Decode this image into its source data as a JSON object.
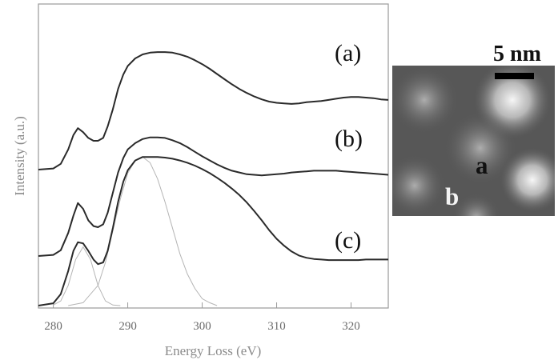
{
  "chart_data": {
    "type": "line",
    "xlabel": "Energy Loss (eV)",
    "ylabel": "Intensity (a.u.)",
    "xlim": [
      278,
      325
    ],
    "x_ticks": [
      280,
      290,
      300,
      310,
      320
    ],
    "y_ticks_shown": false,
    "grid": false,
    "series": [
      {
        "name": "(a)",
        "x": [
          278,
          280,
          281,
          282,
          282.7,
          283.3,
          284,
          284.7,
          285.4,
          286,
          286.7,
          287.3,
          288,
          288.7,
          289.4,
          290,
          291,
          292,
          293,
          294,
          295,
          296,
          297,
          298,
          299,
          300,
          301,
          302,
          303,
          304,
          305,
          306,
          307,
          308,
          309,
          310,
          311,
          312,
          313,
          314,
          315,
          316,
          317,
          318,
          319,
          320,
          321,
          322,
          323,
          324,
          325
        ],
        "y": [
          0.0,
          0.02,
          0.1,
          0.35,
          0.6,
          0.72,
          0.65,
          0.55,
          0.5,
          0.5,
          0.55,
          0.75,
          1.05,
          1.4,
          1.65,
          1.8,
          1.93,
          2.0,
          2.03,
          2.04,
          2.04,
          2.03,
          2.0,
          1.96,
          1.9,
          1.83,
          1.75,
          1.66,
          1.57,
          1.48,
          1.4,
          1.33,
          1.27,
          1.22,
          1.18,
          1.16,
          1.15,
          1.14,
          1.15,
          1.17,
          1.18,
          1.19,
          1.21,
          1.23,
          1.25,
          1.26,
          1.26,
          1.25,
          1.24,
          1.22,
          1.21
        ]
      },
      {
        "name": "(b)",
        "x": [
          278,
          280,
          281,
          282,
          282.7,
          283.3,
          284,
          284.7,
          285.4,
          286,
          286.7,
          287.3,
          288,
          288.7,
          289.4,
          290,
          291,
          292,
          293,
          294,
          295,
          296,
          297,
          298,
          299,
          300,
          301,
          302,
          303,
          304,
          305,
          306,
          307,
          308,
          309,
          310,
          311,
          312,
          313,
          314,
          315,
          316,
          317,
          318,
          319,
          320,
          321,
          322,
          323,
          324,
          325
        ],
        "y": [
          0.0,
          0.02,
          0.1,
          0.4,
          0.7,
          0.92,
          0.82,
          0.62,
          0.52,
          0.5,
          0.55,
          0.75,
          1.1,
          1.45,
          1.7,
          1.85,
          1.96,
          2.03,
          2.06,
          2.06,
          2.05,
          2.01,
          1.96,
          1.89,
          1.81,
          1.73,
          1.66,
          1.59,
          1.53,
          1.48,
          1.45,
          1.42,
          1.41,
          1.4,
          1.41,
          1.42,
          1.43,
          1.45,
          1.46,
          1.47,
          1.48,
          1.48,
          1.48,
          1.48,
          1.47,
          1.46,
          1.45,
          1.44,
          1.43,
          1.42,
          1.41
        ]
      },
      {
        "name": "(c)",
        "x": [
          278,
          280,
          281,
          282,
          282.7,
          283.3,
          284,
          284.7,
          285.4,
          286,
          286.7,
          287.3,
          288,
          288.7,
          289.4,
          290,
          291,
          292,
          293,
          294,
          295,
          296,
          297,
          298,
          299,
          300,
          301,
          302,
          303,
          304,
          305,
          306,
          307,
          308,
          309,
          310,
          311,
          312,
          313,
          314,
          315,
          316,
          317,
          318,
          319,
          320,
          321,
          322,
          323,
          324,
          325
        ],
        "y": [
          0.0,
          0.04,
          0.2,
          0.6,
          0.95,
          1.1,
          1.08,
          0.95,
          0.8,
          0.72,
          0.75,
          0.95,
          1.35,
          1.8,
          2.15,
          2.35,
          2.52,
          2.58,
          2.58,
          2.58,
          2.57,
          2.55,
          2.52,
          2.48,
          2.43,
          2.37,
          2.3,
          2.22,
          2.13,
          2.03,
          1.92,
          1.79,
          1.64,
          1.48,
          1.31,
          1.16,
          1.04,
          0.94,
          0.87,
          0.83,
          0.81,
          0.8,
          0.79,
          0.79,
          0.79,
          0.79,
          0.79,
          0.8,
          0.8,
          0.8,
          0.8
        ]
      }
    ],
    "fit_components": [
      {
        "x": [
          280,
          281,
          282,
          283,
          284,
          285,
          286,
          287,
          288,
          289
        ],
        "y": [
          0.01,
          0.08,
          0.35,
          0.8,
          1.02,
          0.8,
          0.35,
          0.08,
          0.01,
          0.0
        ]
      },
      {
        "x": [
          282,
          284,
          286,
          287,
          288,
          289,
          290,
          291,
          292,
          293,
          294,
          295,
          296,
          297,
          298,
          299,
          300,
          301,
          302
        ],
        "y": [
          0.0,
          0.05,
          0.35,
          0.75,
          1.3,
          1.85,
          2.3,
          2.52,
          2.58,
          2.48,
          2.2,
          1.8,
          1.35,
          0.9,
          0.55,
          0.3,
          0.12,
          0.05,
          0.0
        ]
      }
    ]
  },
  "micrograph": {
    "scale_bar_label": "5 nm",
    "site_labels": [
      "a",
      "b"
    ]
  }
}
